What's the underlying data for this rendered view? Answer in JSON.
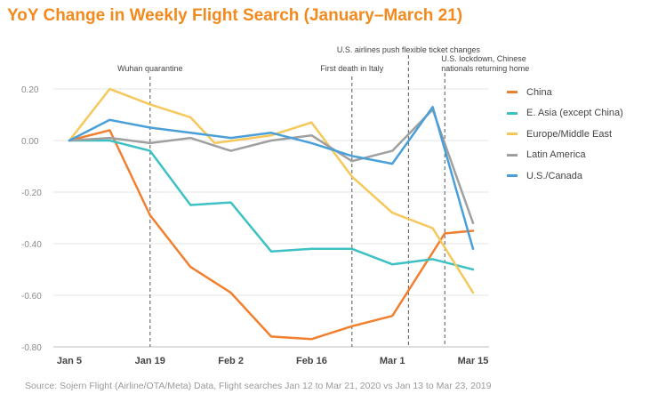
{
  "title": "YoY Change in Weekly Flight Search (January–March 21)",
  "source": "Source: Sojern Flight (Airline/OTA/Meta) Data, Flight searches Jan 12 to Mar 21, 2020 vs Jan 13 to Mar 23, 2019",
  "chart_data": {
    "type": "line",
    "x": [
      0,
      1,
      2,
      3,
      4,
      5,
      6,
      7,
      8,
      9,
      10
    ],
    "xtick_labels": [
      {
        "label": "Jan 5",
        "pos": 0
      },
      {
        "label": "Jan 19",
        "pos": 2
      },
      {
        "label": "Feb 2",
        "pos": 4
      },
      {
        "label": "Feb 16",
        "pos": 6
      },
      {
        "label": "Mar 1",
        "pos": 8
      },
      {
        "label": "Mar 15",
        "pos": 10
      }
    ],
    "ylim": [
      -0.8,
      0.2
    ],
    "yticks": [
      {
        "label": "0.20",
        "value": 0.2
      },
      {
        "label": "0.00",
        "value": 0.0
      },
      {
        "label": "-0.20",
        "value": -0.2
      },
      {
        "label": "-0.40",
        "value": -0.4
      },
      {
        "label": "-0.60",
        "value": -0.6
      },
      {
        "label": "-0.80",
        "value": -0.8
      }
    ],
    "grid": true,
    "legend_position": "right",
    "series": [
      {
        "name": "China",
        "color": "#f08030",
        "points": [
          [
            0,
            0.0
          ],
          [
            1,
            0.04
          ],
          [
            2,
            -0.29
          ],
          [
            3,
            -0.49
          ],
          [
            4,
            -0.59
          ],
          [
            5,
            -0.76
          ],
          [
            6,
            -0.77
          ],
          [
            7,
            -0.72
          ],
          [
            8,
            -0.68
          ],
          [
            9.3,
            -0.36
          ],
          [
            10,
            -0.35
          ]
        ]
      },
      {
        "name": "E. Asia (except China)",
        "color": "#3dc1c4",
        "points": [
          [
            0,
            0.0
          ],
          [
            1,
            0.0
          ],
          [
            2,
            -0.04
          ],
          [
            3,
            -0.25
          ],
          [
            4,
            -0.24
          ],
          [
            5,
            -0.43
          ],
          [
            6,
            -0.42
          ],
          [
            7,
            -0.42
          ],
          [
            8,
            -0.48
          ],
          [
            9,
            -0.46
          ],
          [
            10,
            -0.5
          ]
        ]
      },
      {
        "name": "Europe/Middle East",
        "color": "#f5c85c",
        "points": [
          [
            0,
            0.0
          ],
          [
            1,
            0.2
          ],
          [
            2,
            0.14
          ],
          [
            3,
            0.09
          ],
          [
            3.6,
            -0.01
          ],
          [
            5,
            0.02
          ],
          [
            6,
            0.07
          ],
          [
            7,
            -0.14
          ],
          [
            8,
            -0.28
          ],
          [
            9,
            -0.34
          ],
          [
            10,
            -0.59
          ]
        ]
      },
      {
        "name": "Latin America",
        "color": "#a0a0a0",
        "points": [
          [
            0,
            0.0
          ],
          [
            1,
            0.01
          ],
          [
            2,
            -0.01
          ],
          [
            3,
            0.01
          ],
          [
            4,
            -0.04
          ],
          [
            5,
            0.0
          ],
          [
            6,
            0.02
          ],
          [
            7,
            -0.08
          ],
          [
            8,
            -0.04
          ],
          [
            9,
            0.12
          ],
          [
            10,
            -0.32
          ]
        ]
      },
      {
        "name": "U.S./Canada",
        "color": "#4a9fd9",
        "points": [
          [
            0,
            0.0
          ],
          [
            1,
            0.08
          ],
          [
            2,
            0.05
          ],
          [
            3,
            0.03
          ],
          [
            4,
            0.01
          ],
          [
            5,
            0.03
          ],
          [
            6,
            -0.01
          ],
          [
            7,
            -0.06
          ],
          [
            8,
            -0.09
          ],
          [
            9,
            0.13
          ],
          [
            10,
            -0.42
          ]
        ]
      }
    ],
    "annotations": [
      {
        "x": 2,
        "lines": [
          "Wuhan quarantine"
        ]
      },
      {
        "x": 7,
        "lines": [
          "First death in Italy"
        ]
      },
      {
        "x": 8.4,
        "lines": [
          "U.S. airlines push flexible ticket changes"
        ]
      },
      {
        "x": 9.3,
        "lines": [
          "U.S. lockdown, Chinese",
          "nationals returning home"
        ]
      }
    ]
  }
}
